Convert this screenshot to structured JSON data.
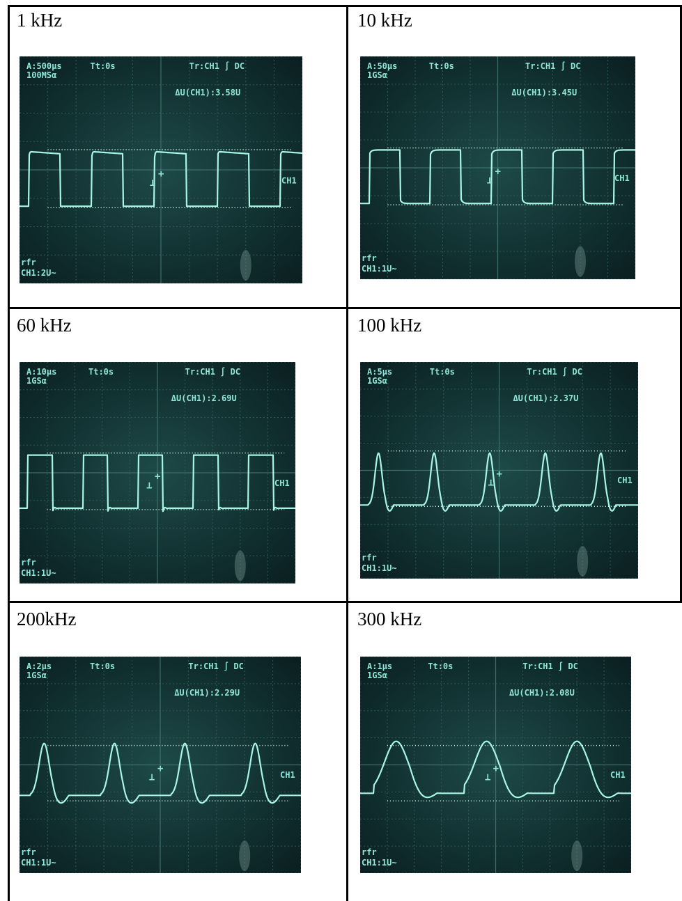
{
  "cells": [
    {
      "label": "1 kHz",
      "scope": {
        "timebase": "A:500µs",
        "sample_rate": "100MSα",
        "trigger_time": "Tt:0s",
        "trigger": "Tr:CH1 ∫ DC",
        "delta_v": "ΔU(CH1):3.58U",
        "channel_tag": "CH1",
        "mode": "rfr",
        "channel_scale": "CH1:2U~",
        "wave_shape": "square-rounded",
        "periods_visible": 4.5
      }
    },
    {
      "label": "10 kHz",
      "scope": {
        "timebase": "A:50µs",
        "sample_rate": "1GSα",
        "trigger_time": "Tt:0s",
        "trigger": "Tr:CH1 ∫ DC",
        "delta_v": "ΔU(CH1):3.45U",
        "channel_tag": "CH1",
        "mode": "rfr",
        "channel_scale": "CH1:1U~",
        "wave_shape": "square-rc",
        "periods_visible": 4.5
      }
    },
    {
      "label": "60 kHz",
      "scope": {
        "timebase": "A:10µs",
        "sample_rate": "1GSα",
        "trigger_time": "Tt:0s",
        "trigger": "Tr:CH1 ∫ DC",
        "delta_v": "ΔU(CH1):2.69U",
        "channel_tag": "CH1",
        "mode": "rfr",
        "channel_scale": "CH1:1U~",
        "wave_shape": "square",
        "periods_visible": 5
      }
    },
    {
      "label": "100 kHz",
      "scope": {
        "timebase": "A:5µs",
        "sample_rate": "1GSα",
        "trigger_time": "Tt:0s",
        "trigger": "Tr:CH1 ∫ DC",
        "delta_v": "ΔU(CH1):2.37U",
        "channel_tag": "CH1",
        "mode": "rfr",
        "channel_scale": "CH1:1U~",
        "wave_shape": "pulse",
        "periods_visible": 5
      }
    },
    {
      "label": "200kHz",
      "scope": {
        "timebase": "A:2µs",
        "sample_rate": "1GSα",
        "trigger_time": "Tt:0s",
        "trigger": "Tr:CH1 ∫ DC",
        "delta_v": "ΔU(CH1):2.29U",
        "channel_tag": "CH1",
        "mode": "rfr",
        "channel_scale": "CH1:1U~",
        "wave_shape": "peak",
        "periods_visible": 4
      }
    },
    {
      "label": "300 kHz",
      "scope": {
        "timebase": "A:1µs",
        "sample_rate": "1GSα",
        "trigger_time": "Tt:0s",
        "trigger": "Tr:CH1 ∫ DC",
        "delta_v": "ΔU(CH1):2.08U",
        "channel_tag": "CH1",
        "mode": "rfr",
        "channel_scale": "CH1:1U~",
        "wave_shape": "sine-ish",
        "periods_visible": 3
      }
    }
  ],
  "colors": {
    "screen": "#0e2a2c",
    "grid": "#2f5a57",
    "trace": "#a8f5e6",
    "text": "#8fe6d8",
    "border": "#000000"
  }
}
